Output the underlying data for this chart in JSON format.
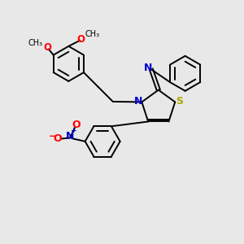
{
  "bg_color": "#e8e8e8",
  "bond_color": "#000000",
  "n_color": "#0000cc",
  "s_color": "#cccc00",
  "o_color": "#ff0000",
  "line_width": 1.4,
  "font_size": 8.5,
  "fig_size": [
    3.0,
    3.0
  ],
  "dpi": 100,
  "xlim": [
    0,
    10
  ],
  "ylim": [
    0,
    10
  ]
}
